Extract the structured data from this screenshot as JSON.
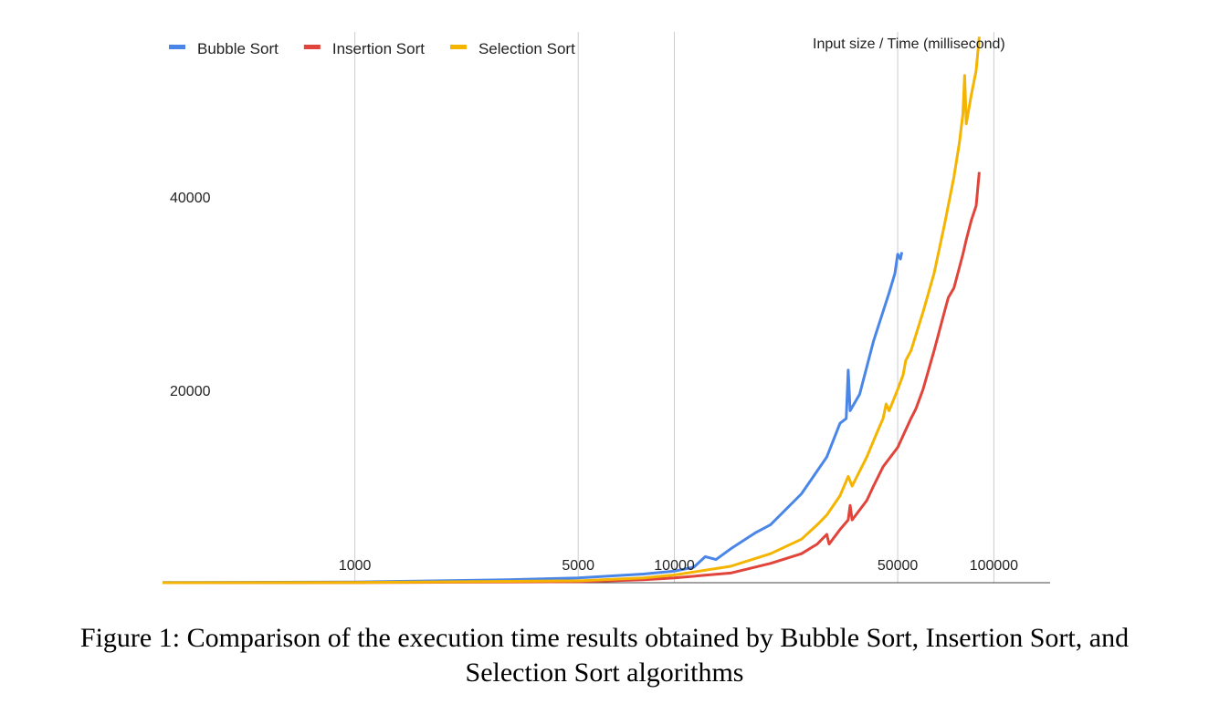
{
  "caption": {
    "line1": "Figure 1: Comparison of the execution time results obtained by Bubble Sort, Insertion Sort, and",
    "line2": "Selection Sort algorithms"
  },
  "chart_data": {
    "type": "line",
    "title": "Input size / Time (millisecond)",
    "xlabel": "",
    "ylabel": "",
    "x_scale": "log",
    "xlim": [
      250,
      150000
    ],
    "ylim": [
      0,
      57000
    ],
    "x_ticks": [
      1000,
      5000,
      10000,
      50000,
      100000
    ],
    "y_ticks": [
      20000,
      40000
    ],
    "legend_position": "top-left",
    "grid": "vertical",
    "series": [
      {
        "name": "Bubble Sort",
        "color": "#4a86e8",
        "points": [
          [
            250,
            20
          ],
          [
            1000,
            80
          ],
          [
            3000,
            300
          ],
          [
            5000,
            500
          ],
          [
            8000,
            900
          ],
          [
            10000,
            1200
          ],
          [
            11500,
            1600
          ],
          [
            12500,
            2700
          ],
          [
            13500,
            2400
          ],
          [
            15000,
            3500
          ],
          [
            18000,
            5200
          ],
          [
            20000,
            6000
          ],
          [
            25000,
            9200
          ],
          [
            30000,
            13000
          ],
          [
            33000,
            16500
          ],
          [
            34500,
            17000
          ],
          [
            35000,
            22000
          ],
          [
            35500,
            17800
          ],
          [
            38000,
            19500
          ],
          [
            42000,
            25000
          ],
          [
            47000,
            30000
          ],
          [
            49000,
            32000
          ],
          [
            50000,
            34000
          ],
          [
            51000,
            33500
          ],
          [
            51500,
            34200
          ]
        ]
      },
      {
        "name": "Insertion Sort",
        "color": "#e0443a",
        "points": [
          [
            250,
            0
          ],
          [
            1000,
            10
          ],
          [
            5000,
            100
          ],
          [
            8000,
            300
          ],
          [
            10000,
            500
          ],
          [
            15000,
            1000
          ],
          [
            20000,
            2000
          ],
          [
            25000,
            3000
          ],
          [
            28000,
            4000
          ],
          [
            30000,
            5000
          ],
          [
            30500,
            4000
          ],
          [
            33000,
            5500
          ],
          [
            35000,
            6500
          ],
          [
            35500,
            8000
          ],
          [
            36000,
            6500
          ],
          [
            40000,
            8500
          ],
          [
            42000,
            10000
          ],
          [
            45000,
            12000
          ],
          [
            50000,
            14000
          ],
          [
            55000,
            17000
          ],
          [
            57000,
            18000
          ],
          [
            60000,
            20000
          ],
          [
            65000,
            24000
          ],
          [
            70000,
            28000
          ],
          [
            72000,
            29500
          ],
          [
            75000,
            30500
          ],
          [
            80000,
            34000
          ],
          [
            82000,
            35500
          ],
          [
            85000,
            37500
          ],
          [
            88000,
            39000
          ],
          [
            90000,
            42500
          ]
        ]
      },
      {
        "name": "Selection Sort",
        "color": "#f4b400",
        "points": [
          [
            250,
            0
          ],
          [
            1000,
            15
          ],
          [
            5000,
            200
          ],
          [
            8000,
            500
          ],
          [
            10000,
            800
          ],
          [
            15000,
            1700
          ],
          [
            20000,
            3000
          ],
          [
            25000,
            4500
          ],
          [
            28000,
            6000
          ],
          [
            30000,
            7000
          ],
          [
            33000,
            9000
          ],
          [
            34500,
            10500
          ],
          [
            35000,
            11000
          ],
          [
            36000,
            10000
          ],
          [
            40000,
            13000
          ],
          [
            43000,
            15500
          ],
          [
            45000,
            17000
          ],
          [
            46000,
            18500
          ],
          [
            47000,
            17800
          ],
          [
            50000,
            20000
          ],
          [
            52000,
            21500
          ],
          [
            53000,
            23000
          ],
          [
            55000,
            24000
          ],
          [
            60000,
            28000
          ],
          [
            65000,
            32000
          ],
          [
            70000,
            37000
          ],
          [
            75000,
            42000
          ],
          [
            78000,
            45500
          ],
          [
            80000,
            48500
          ],
          [
            81000,
            52500
          ],
          [
            82000,
            47500
          ],
          [
            85000,
            50500
          ],
          [
            88000,
            53000
          ],
          [
            90000,
            56500
          ]
        ]
      }
    ]
  }
}
